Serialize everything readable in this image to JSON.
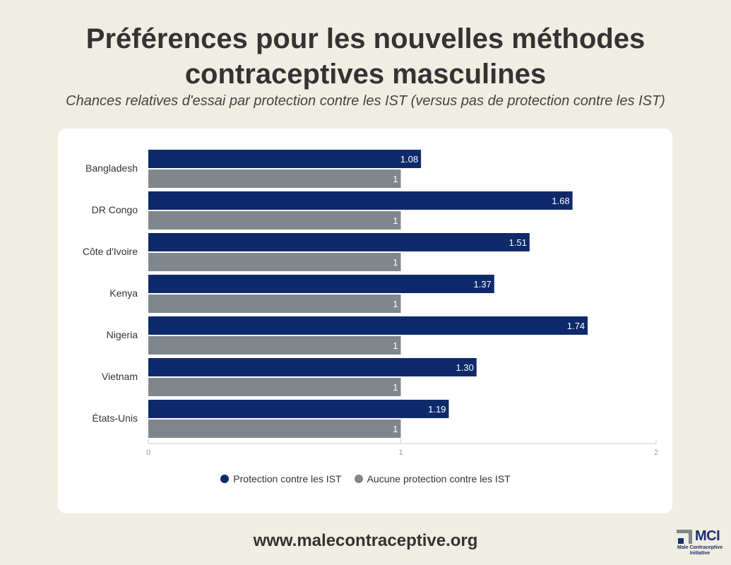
{
  "header": {
    "title": "Préférences pour les nouvelles méthodes contraceptives masculines",
    "subtitle": "Chances relatives d'essai par protection contre les IST (versus pas de protection contre les IST)"
  },
  "colors": {
    "protection": "#0f2a6b",
    "no_protection": "#7f878d",
    "background": "#f0ede3",
    "card": "#ffffff"
  },
  "chart_data": {
    "type": "bar",
    "orientation": "horizontal",
    "categories": [
      "Bangladesh",
      "DR Congo",
      "Côte d'Ivoire",
      "Kenya",
      "Nigeria",
      "Vietnam",
      "États-Unis"
    ],
    "series": [
      {
        "name": "Protection contre les IST",
        "values": [
          1.08,
          1.68,
          1.51,
          1.37,
          1.74,
          1.3,
          1.19
        ],
        "labels": [
          "1.08",
          "1.68",
          "1.51",
          "1.37",
          "1.74",
          "1.30",
          "1.19"
        ]
      },
      {
        "name": "Aucune protection contre les IST",
        "values": [
          1,
          1,
          1,
          1,
          1,
          1,
          1
        ],
        "labels": [
          "1",
          "1",
          "1",
          "1",
          "1",
          "1",
          "1"
        ]
      }
    ],
    "xlim": [
      0,
      2
    ],
    "xticks": [
      "0",
      "1",
      "2"
    ],
    "grid": false,
    "legend_position": "bottom"
  },
  "footer": {
    "url": "www.malecontraceptive.org",
    "logo_text": "MCI",
    "logo_subtext": "Male Contraceptive Initiative"
  }
}
